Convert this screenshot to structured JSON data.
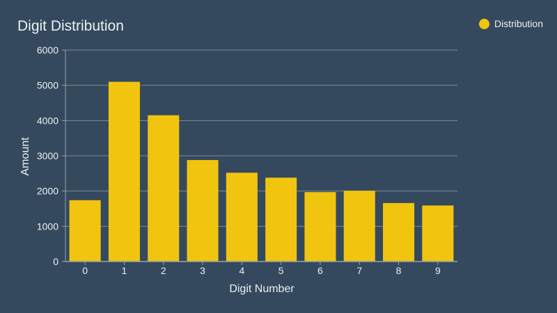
{
  "chart_data": {
    "type": "bar",
    "title": "Digit Distribution",
    "xlabel": "Digit Number",
    "ylabel": "Amount",
    "categories": [
      "0",
      "1",
      "2",
      "3",
      "4",
      "5",
      "6",
      "7",
      "8",
      "9"
    ],
    "series": [
      {
        "name": "Distribution",
        "values": [
          1740,
          5100,
          4150,
          2880,
          2520,
          2380,
          1970,
          2010,
          1660,
          1590
        ]
      }
    ],
    "ylim": [
      0,
      6000
    ],
    "yticks": [
      0,
      1000,
      2000,
      3000,
      4000,
      5000,
      6000
    ],
    "grid": true,
    "legend_position": "top-right"
  },
  "colors": {
    "background": "#34495e",
    "bar": "#f1c40f",
    "grid": "#7f8c8d",
    "text": "#ecf0f1",
    "axis": "#95a5a6"
  }
}
